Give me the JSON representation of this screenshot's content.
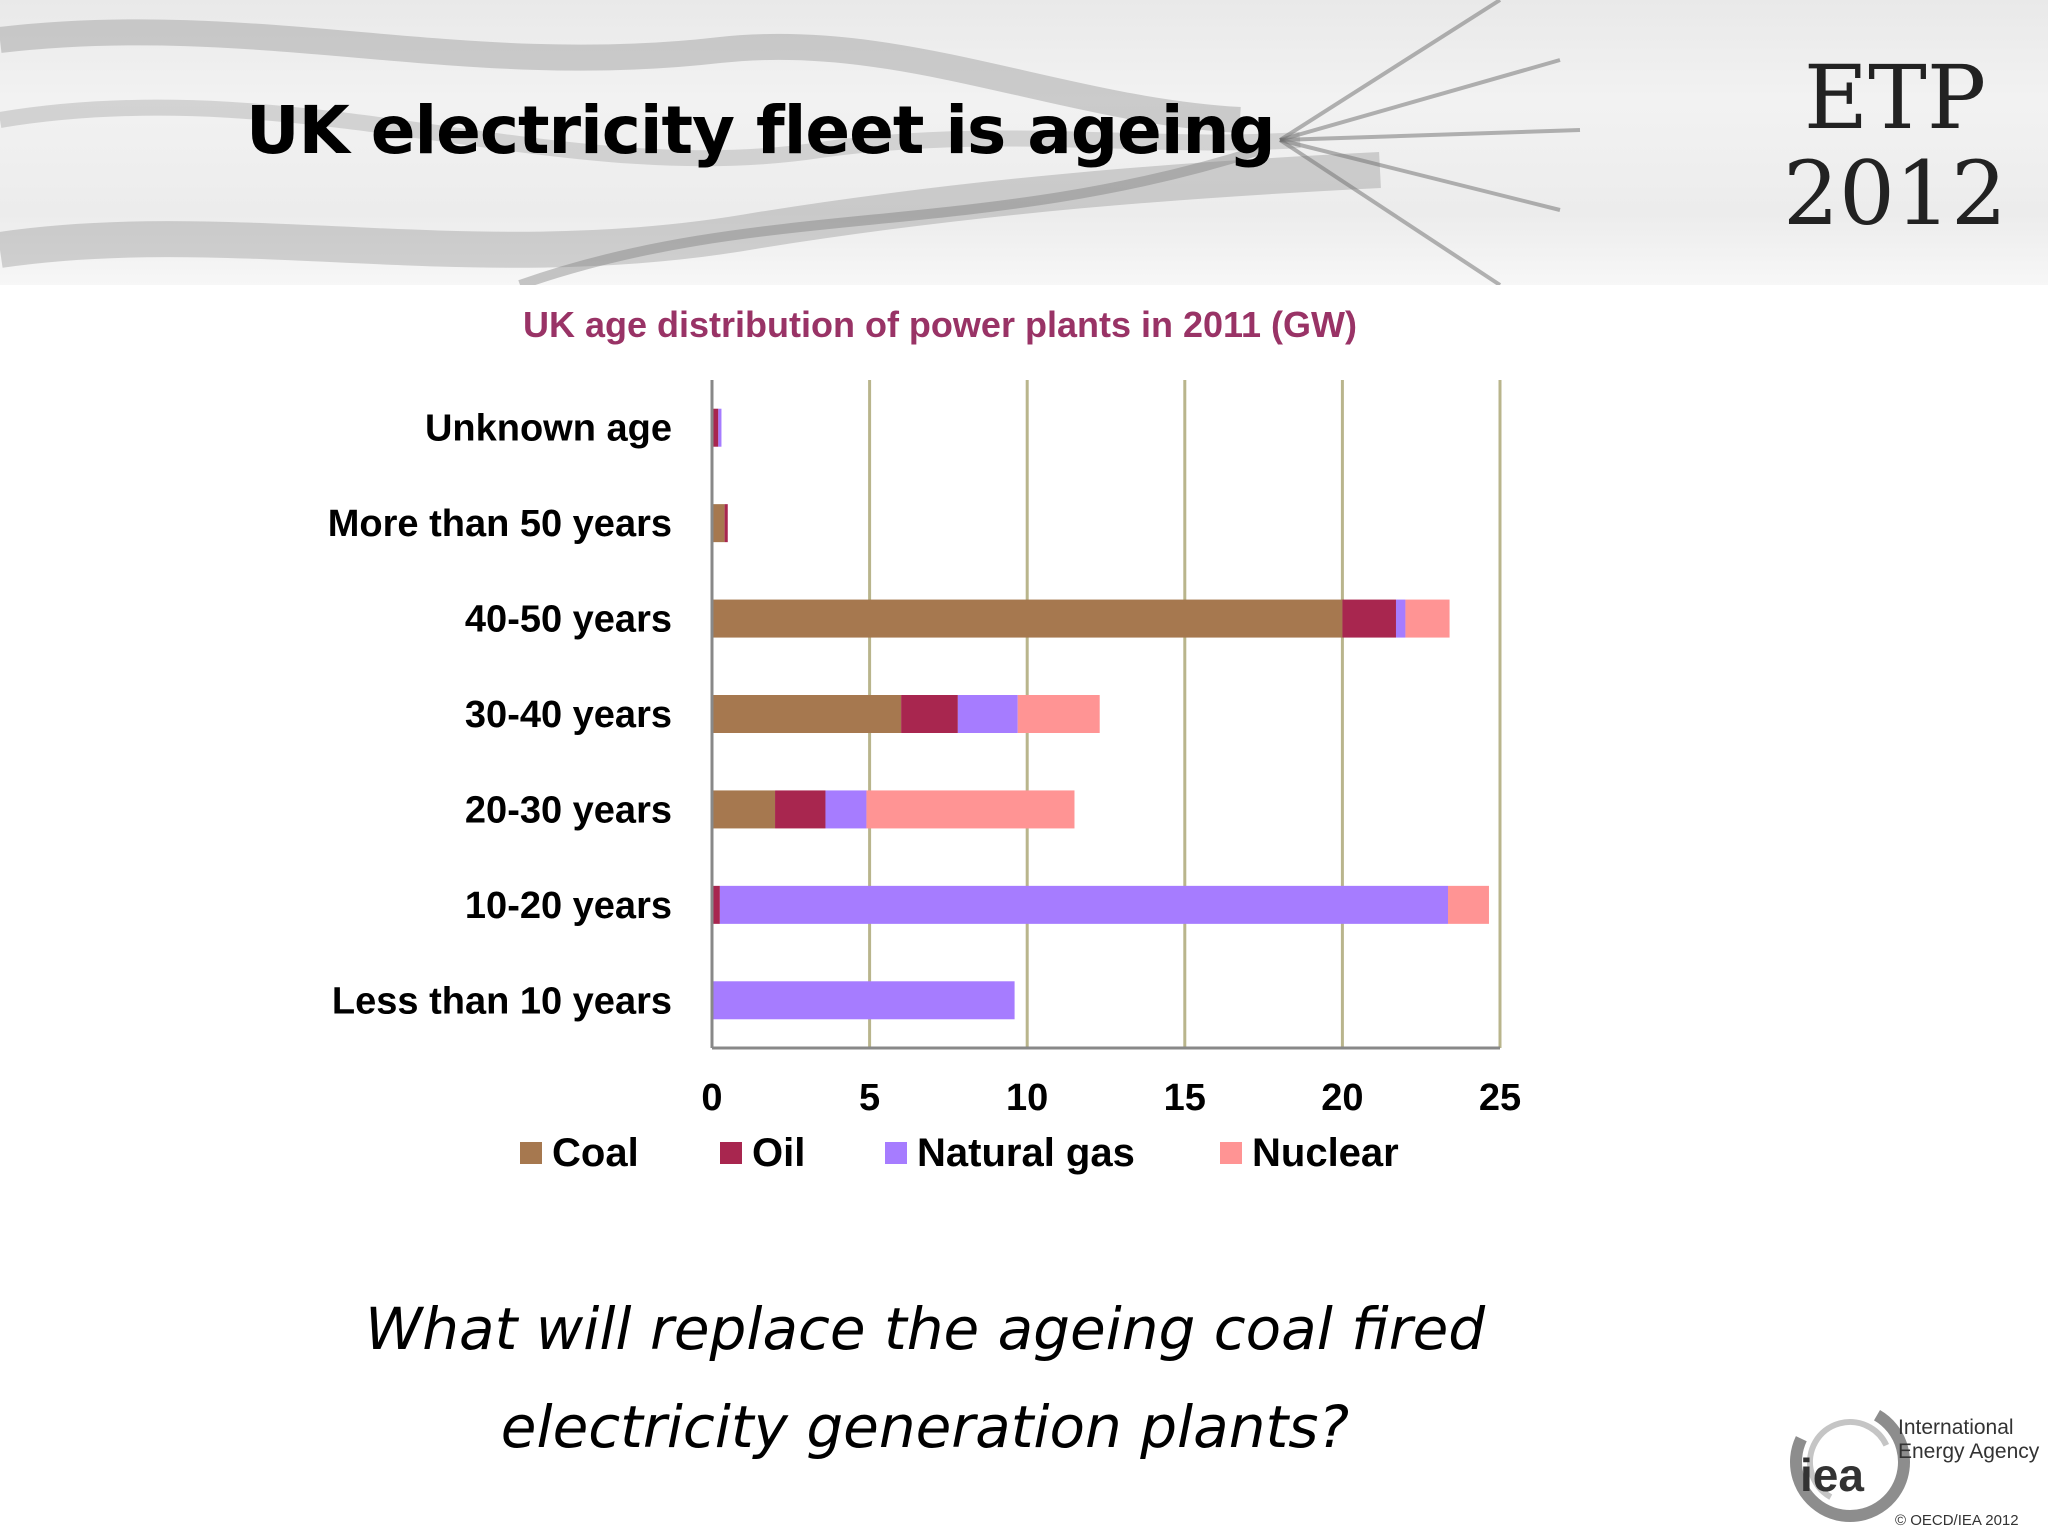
{
  "slide": {
    "title": "UK electricity fleet is ageing",
    "logo_line1": "ETP",
    "logo_line2": "2012",
    "question_line1": "What will replace the ageing coal fired",
    "question_line2": "electricity generation plants?",
    "publisher_line1": "International",
    "publisher_line2": "Energy Agency",
    "publisher_mark": "iea",
    "copyright": "© OECD/IEA 2012"
  },
  "chart_data": {
    "type": "bar",
    "orientation": "horizontal",
    "stacked": true,
    "title": "UK age distribution of power plants in 2011 (GW)",
    "xlabel": "",
    "ylabel": "",
    "xlim": [
      0,
      25
    ],
    "xticks": [
      "0",
      "5",
      "10",
      "15",
      "20",
      "25"
    ],
    "grid": "vertical",
    "legend_position": "bottom",
    "categories": [
      "Unknown age",
      "More than 50 years",
      "40-50 years",
      "30-40 years",
      "20-30 years",
      "10-20 years",
      "Less than 10 years"
    ],
    "series": [
      {
        "name": "Coal",
        "color": "#a6784f",
        "values": [
          0,
          0.4,
          20.0,
          6.0,
          2.0,
          0,
          0
        ]
      },
      {
        "name": "Oil",
        "color": "#a8264f",
        "values": [
          0.2,
          0.1,
          1.7,
          1.8,
          1.6,
          0.25,
          0
        ]
      },
      {
        "name": "Natural gas",
        "color": "#a67cff",
        "values": [
          0.1,
          0,
          0.3,
          1.9,
          1.3,
          23.1,
          9.6
        ]
      },
      {
        "name": "Nuclear",
        "color": "#ff9494",
        "values": [
          0,
          0,
          1.4,
          2.6,
          6.6,
          1.3,
          0
        ]
      }
    ]
  },
  "colors": {
    "chart_title": "#993366",
    "gridline": "#b9b58c"
  }
}
